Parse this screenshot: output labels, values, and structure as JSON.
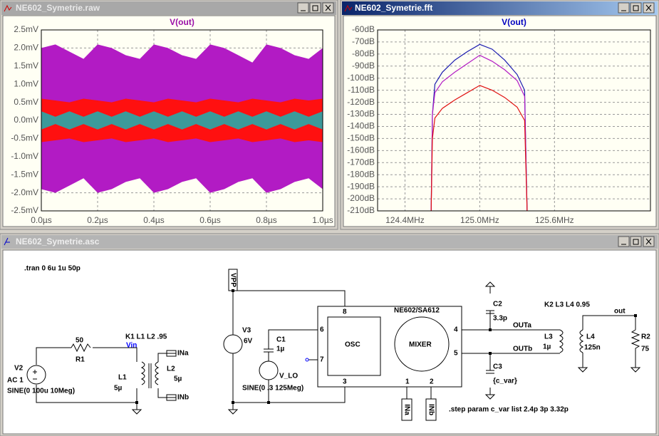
{
  "chart_data": [
    {
      "type": "band",
      "window_title": "NE602_Symetrie.raw",
      "title": "V(out)",
      "title_color": "#9a10a8",
      "x": [
        0,
        0.05,
        0.1,
        0.15,
        0.2,
        0.25,
        0.3,
        0.35,
        0.4,
        0.45,
        0.5,
        0.55,
        0.6,
        0.65,
        0.7,
        0.75,
        0.8,
        0.85,
        0.9,
        0.95,
        1.0
      ],
      "series": [
        {
          "color": "#b21bc4",
          "upper": [
            2.0,
            2.1,
            1.9,
            1.7,
            2.1,
            2.0,
            1.8,
            1.7,
            2.1,
            2.0,
            1.8,
            1.7,
            2.1,
            2.0,
            1.8,
            1.6,
            2.1,
            2.0,
            1.8,
            1.7,
            2.0
          ],
          "lower": [
            -1.9,
            -2.0,
            -1.8,
            -1.6,
            -2.0,
            -1.9,
            -1.7,
            -1.6,
            -2.0,
            -1.9,
            -1.7,
            -1.6,
            -2.0,
            -1.9,
            -1.7,
            -1.6,
            -2.0,
            -1.9,
            -1.7,
            -1.6,
            -1.9
          ]
        },
        {
          "color": "#ff1010",
          "upper": [
            0.6,
            0.55,
            0.5,
            0.6,
            0.55,
            0.5,
            0.6,
            0.55,
            0.5,
            0.6,
            0.55,
            0.5,
            0.6,
            0.55,
            0.5,
            0.6,
            0.55,
            0.5,
            0.6,
            0.55,
            0.6
          ],
          "lower": [
            -0.6,
            -0.55,
            -0.5,
            -0.6,
            -0.55,
            -0.5,
            -0.6,
            -0.55,
            -0.5,
            -0.6,
            -0.55,
            -0.5,
            -0.6,
            -0.55,
            -0.5,
            -0.6,
            -0.55,
            -0.5,
            -0.6,
            -0.55,
            -0.6
          ]
        },
        {
          "color": "#3c9a9a",
          "upper": [
            0.25,
            0.1,
            0.25,
            0.1,
            0.25,
            0.1,
            0.25,
            0.1,
            0.25,
            0.1,
            0.25,
            0.1,
            0.25,
            0.1,
            0.25,
            0.1,
            0.25,
            0.1,
            0.25,
            0.1,
            0.25
          ],
          "lower": [
            -0.25,
            -0.1,
            -0.25,
            -0.1,
            -0.25,
            -0.1,
            -0.25,
            -0.1,
            -0.25,
            -0.1,
            -0.25,
            -0.1,
            -0.25,
            -0.1,
            -0.25,
            -0.1,
            -0.25,
            -0.1,
            -0.25,
            -0.1,
            -0.25
          ]
        }
      ],
      "xlim": [
        0,
        1.0
      ],
      "xticks": [
        {
          "value": 0,
          "label": "0.0µs"
        },
        {
          "value": 0.2,
          "label": "0.2µs"
        },
        {
          "value": 0.4,
          "label": "0.4µs"
        },
        {
          "value": 0.6,
          "label": "0.6µs"
        },
        {
          "value": 0.8,
          "label": "0.8µs"
        },
        {
          "value": 1.0,
          "label": "1.0µs"
        }
      ],
      "ylim": [
        -2.5,
        2.5
      ],
      "yticks": [
        {
          "value": 2.5,
          "label": "2.5mV"
        },
        {
          "value": 2.0,
          "label": "2.0mV"
        },
        {
          "value": 1.5,
          "label": "1.5mV"
        },
        {
          "value": 1.0,
          "label": "1.0mV"
        },
        {
          "value": 0.5,
          "label": "0.5mV"
        },
        {
          "value": 0,
          "label": "0.0mV"
        },
        {
          "value": -0.5,
          "label": "-0.5mV"
        },
        {
          "value": -1.0,
          "label": "-1.0mV"
        },
        {
          "value": -1.5,
          "label": "-1.5mV"
        },
        {
          "value": -2.0,
          "label": "-2.0mV"
        },
        {
          "value": -2.5,
          "label": "-2.5mV"
        }
      ],
      "grid": true
    },
    {
      "type": "line",
      "window_title": "NE602_Symetrie.fft",
      "title": "V(out)",
      "title_color": "#0000c0",
      "x": [
        124.61,
        124.62,
        124.64,
        124.7,
        124.8,
        124.9,
        125.0,
        125.1,
        125.2,
        125.3,
        125.36,
        125.38
      ],
      "series": [
        {
          "color": "#1a1ab0",
          "values": [
            -210,
            -130,
            -105,
            -95,
            -85,
            -78,
            -72,
            -76,
            -85,
            -97,
            -110,
            -210
          ]
        },
        {
          "color": "#b21bc4",
          "values": [
            -210,
            -130,
            -112,
            -103,
            -95,
            -88,
            -81,
            -86,
            -93,
            -102,
            -115,
            -210
          ]
        },
        {
          "color": "#e01010",
          "values": [
            -210,
            -150,
            -133,
            -125,
            -118,
            -112,
            -106,
            -110,
            -116,
            -124,
            -135,
            -210
          ]
        }
      ],
      "xlim": [
        124.18,
        126.37
      ],
      "xticks": [
        {
          "value": 124.4,
          "label": "124.4MHz"
        },
        {
          "value": 125.0,
          "label": "125.0MHz"
        },
        {
          "value": 125.6,
          "label": "125.6MHz"
        }
      ],
      "ylim": [
        -210,
        -60
      ],
      "yticks": [
        {
          "value": -60,
          "label": "-60dB"
        },
        {
          "value": -70,
          "label": "-70dB"
        },
        {
          "value": -80,
          "label": "-80dB"
        },
        {
          "value": -90,
          "label": "-90dB"
        },
        {
          "value": -100,
          "label": "-100dB"
        },
        {
          "value": -110,
          "label": "-110dB"
        },
        {
          "value": -120,
          "label": "-120dB"
        },
        {
          "value": -130,
          "label": "-130dB"
        },
        {
          "value": -140,
          "label": "-140dB"
        },
        {
          "value": -150,
          "label": "-150dB"
        },
        {
          "value": -160,
          "label": "-160dB"
        },
        {
          "value": -170,
          "label": "-170dB"
        },
        {
          "value": -180,
          "label": "-180dB"
        },
        {
          "value": -190,
          "label": "-190dB"
        },
        {
          "value": -200,
          "label": "-200dB"
        },
        {
          "value": -210,
          "label": "-210dB"
        }
      ],
      "grid": true
    }
  ],
  "schematic": {
    "window_title": "NE602_Symetrie.asc",
    "tran": ".tran 0 6u 1u 50p",
    "v2": "V2",
    "v2_ac": "AC 1",
    "v2_sine": "SINE(0 100u 10Meg)",
    "r1_value": "50",
    "r1": "R1",
    "k1": "K1 L1 L2 .95",
    "vin": "Vin",
    "l1": "L1",
    "l1_value": "5µ",
    "l2": "L2",
    "l2_value": "5µ",
    "ina": "INa",
    "inb": "INb",
    "vpp": "VPP",
    "v3": "V3",
    "v3_value": "6V",
    "c1": "C1",
    "c1_value": "1µ",
    "vlo": "V_LO",
    "vlo_sine": "SINE(0 .3 125Meg)",
    "pin8": "8",
    "pin6": "6",
    "pin7": "7",
    "pin3": "3",
    "osc": "OSC",
    "mixer": "MIXER",
    "chip": "NE602/SA612",
    "pin4": "4",
    "pin5": "5",
    "pin1": "1",
    "pin2": "2",
    "c2": "C2",
    "c2_value": "3.3p",
    "c3": "C3",
    "c3_value": "{c_var}",
    "outa": "OUTa",
    "outb": "OUTb",
    "l3": "L3",
    "l3_value": "1µ",
    "k2": "K2 L3 L4 0.95",
    "l4": "L4",
    "l4_value": "125n",
    "out": "out",
    "r2": "R2",
    "r2_value": "75",
    "ina_bottom": "INa",
    "inb_bottom": "INb",
    "step": ".step param c_var list 2.4p 3p 3.32p"
  }
}
